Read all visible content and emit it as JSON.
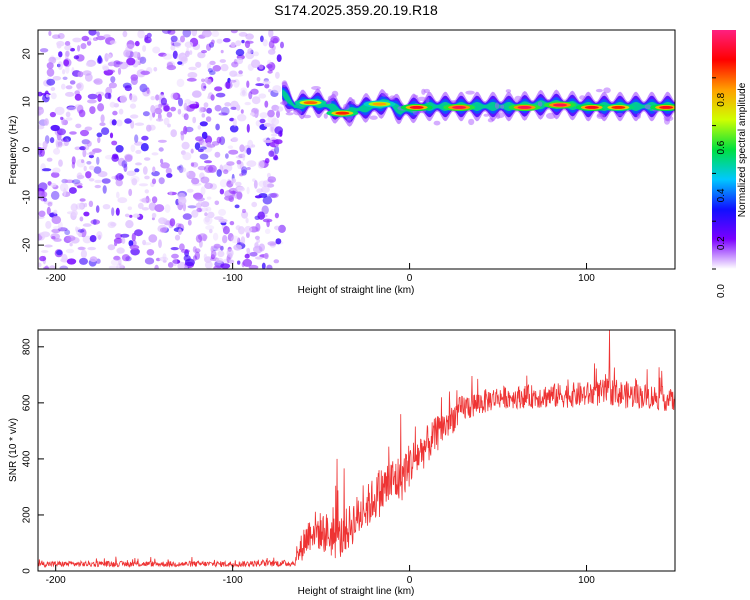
{
  "chart_data": [
    {
      "type": "heatmap",
      "title": "S174.2025.359.20.19.R18",
      "xlabel": "Height of straight line (km)",
      "ylabel": "Frequency (Hz)",
      "xlim": [
        -210,
        150
      ],
      "ylim": [
        -25,
        25
      ],
      "x_ticks": [
        -200,
        -100,
        0,
        100
      ],
      "x_tick_labels": [
        "-200",
        "-100",
        "0",
        "100"
      ],
      "y_ticks": [
        -20,
        -10,
        0,
        10,
        20
      ],
      "y_tick_labels": [
        "-20",
        "-10",
        "0",
        "10",
        "20"
      ],
      "colorbar": {
        "label": "Normalized spectral amplitude",
        "range": [
          0,
          1
        ],
        "ticks": [
          0,
          0.2,
          0.4,
          0.6,
          0.8
        ],
        "tick_labels": [
          "0.0",
          "0.2",
          "0.4",
          "0.6",
          "0.8"
        ],
        "colormap": [
          "#ffffff",
          "#7b00ff",
          "#1010ff",
          "#00c8ff",
          "#00e040",
          "#d0ff00",
          "#ffa000",
          "#ff0000",
          "#ff2080"
        ]
      },
      "noise_region": {
        "x_range": [
          -210,
          -72
        ],
        "freq_range": [
          -25,
          25
        ],
        "level": "low 0.0-0.3"
      },
      "tone_track": [
        {
          "x": -72,
          "freq": 12
        },
        {
          "x": -65,
          "freq": 9
        },
        {
          "x": -55,
          "freq": 10
        },
        {
          "x": -45,
          "freq": 9
        },
        {
          "x": -37,
          "freq": 7.5
        },
        {
          "x": -28,
          "freq": 8.5
        },
        {
          "x": -20,
          "freq": 9
        },
        {
          "x": -12,
          "freq": 10
        },
        {
          "x": -5,
          "freq": 8
        },
        {
          "x": 0,
          "freq": 8.5
        },
        {
          "x": 10,
          "freq": 9
        },
        {
          "x": 30,
          "freq": 9
        },
        {
          "x": 60,
          "freq": 9
        },
        {
          "x": 80,
          "freq": 9.5
        },
        {
          "x": 100,
          "freq": 9
        },
        {
          "x": 120,
          "freq": 9
        },
        {
          "x": 150,
          "freq": 9
        }
      ],
      "peaks": [
        {
          "x": -56,
          "freq": 9.8,
          "amp": 0.8
        },
        {
          "x": -38,
          "freq": 7.6,
          "amp": 0.85
        },
        {
          "x": -17,
          "freq": 9.5,
          "amp": 0.75
        },
        {
          "x": 4,
          "freq": 8.8,
          "amp": 0.9
        },
        {
          "x": 28,
          "freq": 8.8,
          "amp": 0.95
        },
        {
          "x": 65,
          "freq": 8.8,
          "amp": 0.95
        },
        {
          "x": 85,
          "freq": 9.3,
          "amp": 0.95
        },
        {
          "x": 103,
          "freq": 8.8,
          "amp": 0.9
        },
        {
          "x": 118,
          "freq": 8.8,
          "amp": 0.85
        },
        {
          "x": 145,
          "freq": 8.8,
          "amp": 0.9
        }
      ]
    },
    {
      "type": "line",
      "title": "",
      "xlabel": "Height of straight line (km)",
      "ylabel": "SNR (10 * v/v)",
      "xlim": [
        -210,
        150
      ],
      "ylim": [
        0,
        860
      ],
      "x_ticks": [
        -200,
        -100,
        0,
        100
      ],
      "x_tick_labels": [
        "-200",
        "-100",
        "0",
        "100"
      ],
      "y_ticks": [
        0,
        200,
        400,
        600,
        800
      ],
      "y_tick_labels": [
        "0",
        "200",
        "400",
        "600",
        "800"
      ],
      "line_color": "#ee3333",
      "series": [
        {
          "name": "SNR",
          "x": [
            -210,
            -150,
            -100,
            -65,
            -60,
            -55,
            -50,
            -45,
            -40,
            -35,
            -30,
            -25,
            -20,
            -15,
            -10,
            -5,
            0,
            10,
            20,
            30,
            40,
            50,
            60,
            80,
            100,
            115,
            120,
            130,
            140,
            150
          ],
          "mean": [
            25,
            25,
            25,
            28,
            100,
            150,
            140,
            130,
            110,
            150,
            190,
            220,
            260,
            290,
            320,
            330,
            380,
            450,
            520,
            580,
            600,
            620,
            620,
            625,
            630,
            640,
            630,
            625,
            620,
            605
          ],
          "noise_amplitude": [
            10,
            10,
            10,
            12,
            60,
            70,
            70,
            80,
            80,
            80,
            80,
            80,
            80,
            90,
            90,
            90,
            80,
            70,
            60,
            50,
            45,
            40,
            40,
            45,
            45,
            50,
            50,
            45,
            45,
            40
          ]
        }
      ],
      "spikes": [
        {
          "x": -41,
          "y": 400
        },
        {
          "x": -5,
          "y": 560
        },
        {
          "x": 18,
          "y": 620
        },
        {
          "x": 113,
          "y": 860
        }
      ]
    }
  ]
}
